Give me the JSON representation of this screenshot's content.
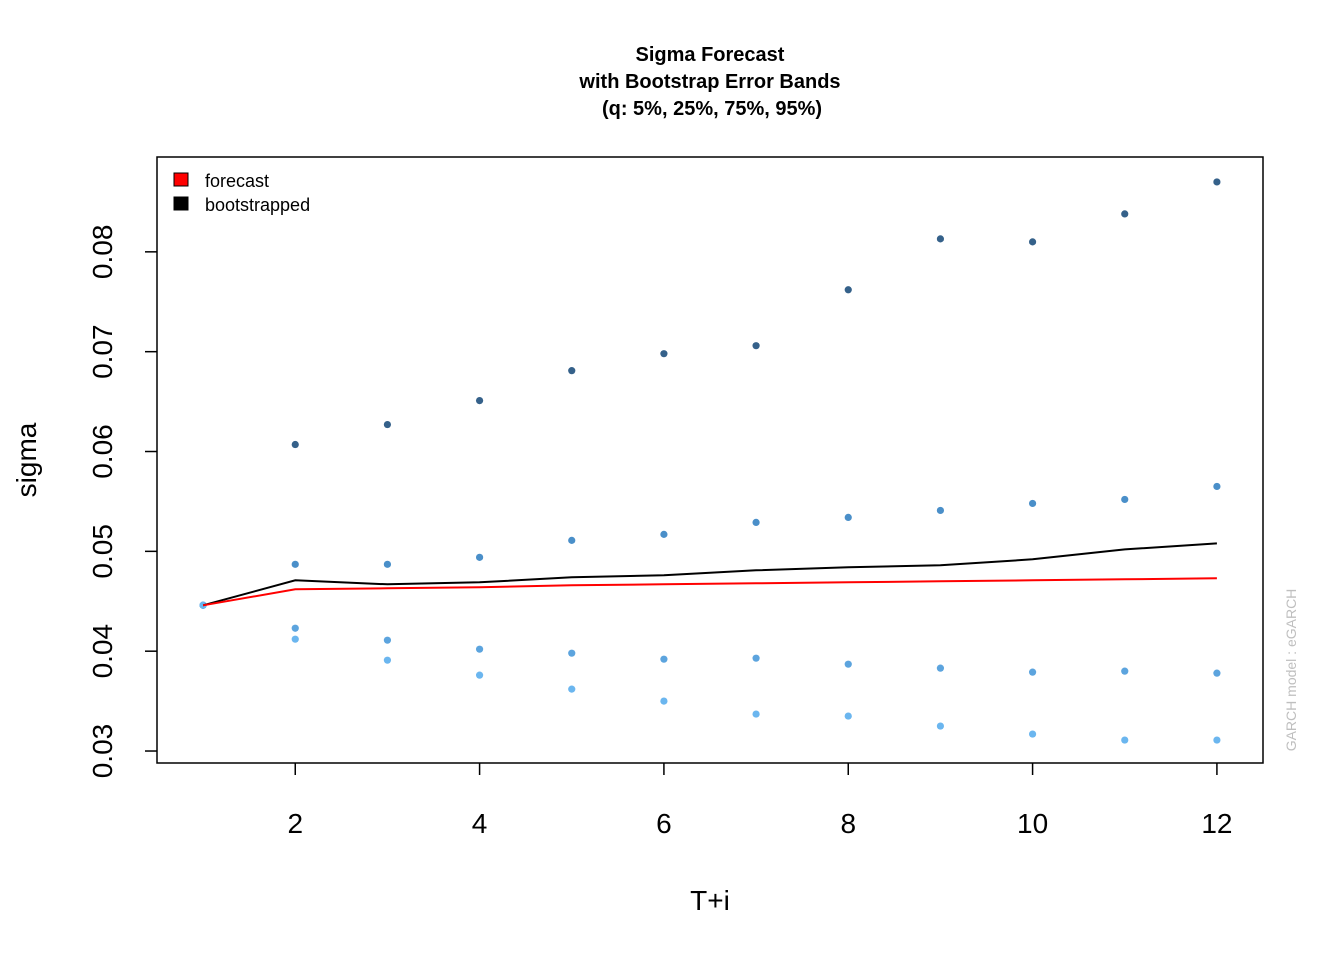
{
  "chart_data": {
    "type": "line",
    "title_lines": [
      "Sigma Forecast",
      "with Bootstrap Error Bands",
      "(q: 5%, 25%, 75%, 95%)"
    ],
    "xlabel": "T+i",
    "ylabel": "sigma",
    "xlim": [
      0.5,
      12.5
    ],
    "ylim": [
      0.0288,
      0.0895
    ],
    "x_ticks": [
      2,
      4,
      6,
      8,
      10,
      12
    ],
    "y_ticks": [
      0.03,
      0.04,
      0.05,
      0.06,
      0.07,
      0.08
    ],
    "y_tick_labels": [
      "0.03",
      "0.04",
      "0.05",
      "0.06",
      "0.07",
      "0.08"
    ],
    "legend_position": "top-left",
    "legend": [
      {
        "label": "forecast",
        "color": "#ff0000"
      },
      {
        "label": "bootstrapped",
        "color": "#000000"
      }
    ],
    "watermark": "GARCH model : eGARCH",
    "x": [
      1,
      2,
      3,
      4,
      5,
      6,
      7,
      8,
      9,
      10,
      11,
      12
    ],
    "series": [
      {
        "name": "forecast",
        "kind": "line",
        "color": "#ff0000",
        "values": [
          0.0446,
          0.0462,
          0.0463,
          0.0464,
          0.0466,
          0.0467,
          0.0468,
          0.0469,
          0.047,
          0.0471,
          0.0472,
          0.0473
        ]
      },
      {
        "name": "bootstrapped",
        "kind": "line",
        "color": "#000000",
        "values": [
          0.0446,
          0.0471,
          0.0467,
          0.0469,
          0.0474,
          0.0476,
          0.0481,
          0.0484,
          0.0486,
          0.0492,
          0.0502,
          0.0508
        ]
      },
      {
        "name": "q95",
        "kind": "points",
        "color": "#35618a",
        "values": [
          0.0446,
          0.0607,
          0.0627,
          0.0651,
          0.0681,
          0.0698,
          0.0706,
          0.0762,
          0.0813,
          0.081,
          0.0838,
          0.087
        ]
      },
      {
        "name": "q75",
        "kind": "points",
        "color": "#4a8fc9",
        "values": [
          0.0446,
          0.0487,
          0.0487,
          0.0494,
          0.0511,
          0.0517,
          0.0529,
          0.0534,
          0.0541,
          0.0548,
          0.0552,
          0.0565
        ]
      },
      {
        "name": "q25",
        "kind": "points",
        "color": "#5ca4de",
        "values": [
          0.0446,
          0.0423,
          0.0411,
          0.0402,
          0.0398,
          0.0392,
          0.0393,
          0.0387,
          0.0383,
          0.0379,
          0.038,
          0.0378
        ]
      },
      {
        "name": "q05",
        "kind": "points",
        "color": "#6bb6ef",
        "values": [
          0.0446,
          0.0412,
          0.0391,
          0.0376,
          0.0362,
          0.035,
          0.0337,
          0.0335,
          0.0325,
          0.0317,
          0.0311,
          0.0311
        ]
      }
    ]
  }
}
